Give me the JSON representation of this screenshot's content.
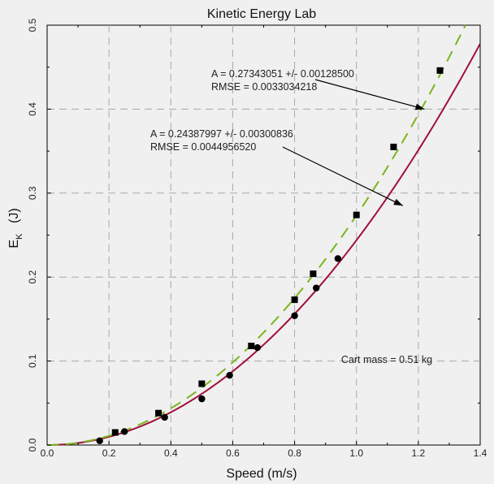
{
  "chart_data": {
    "type": "scatter",
    "title": "Kinetic Energy Lab",
    "xlabel": "Speed   (m/s)",
    "ylabel_main": "E",
    "ylabel_sub": "K",
    "ylabel_unit": "(J)",
    "xlim": [
      0,
      1.4
    ],
    "ylim": [
      0,
      0.5
    ],
    "x_ticks": [
      "0.0",
      "0.2",
      "0.4",
      "0.6",
      "0.8",
      "1.0",
      "1.2",
      "1.4"
    ],
    "y_ticks": [
      "0.0",
      "0.1",
      "0.2",
      "0.3",
      "0.4",
      "0.5"
    ],
    "grid": true,
    "series": [
      {
        "marker": "circle",
        "color": "#000000",
        "points": [
          {
            "x": 0.17,
            "y": 0.005
          },
          {
            "x": 0.25,
            "y": 0.016
          },
          {
            "x": 0.38,
            "y": 0.033
          },
          {
            "x": 0.5,
            "y": 0.055
          },
          {
            "x": 0.59,
            "y": 0.083
          },
          {
            "x": 0.68,
            "y": 0.116
          },
          {
            "x": 0.8,
            "y": 0.154
          },
          {
            "x": 0.87,
            "y": 0.187
          },
          {
            "x": 0.94,
            "y": 0.222
          }
        ],
        "fit": {
          "A": 0.24387997,
          "color": "#a0103a",
          "style": "solid"
        }
      },
      {
        "marker": "square",
        "color": "#000000",
        "points": [
          {
            "x": 0.22,
            "y": 0.015
          },
          {
            "x": 0.36,
            "y": 0.038
          },
          {
            "x": 0.5,
            "y": 0.073
          },
          {
            "x": 0.66,
            "y": 0.118
          },
          {
            "x": 0.8,
            "y": 0.173
          },
          {
            "x": 0.86,
            "y": 0.204
          },
          {
            "x": 1.0,
            "y": 0.274
          },
          {
            "x": 1.12,
            "y": 0.355
          },
          {
            "x": 1.27,
            "y": 0.446
          }
        ],
        "fit": {
          "A": 0.27343051,
          "color": "#7ab51d",
          "style": "dashed"
        }
      }
    ],
    "annotations": [
      {
        "line1": "A = 0.27343051 +/- 0.00128500",
        "line2": "RMSE = 0.0033034218",
        "arrow_target": {
          "x": 1.22,
          "y": 0.4
        }
      },
      {
        "line1": "A = 0.24387997 +/- 0.00300836",
        "line2": "RMSE = 0.0044956520",
        "arrow_target": {
          "x": 1.15,
          "y": 0.285
        }
      }
    ],
    "note": "Cart mass = 0.51 kg"
  }
}
